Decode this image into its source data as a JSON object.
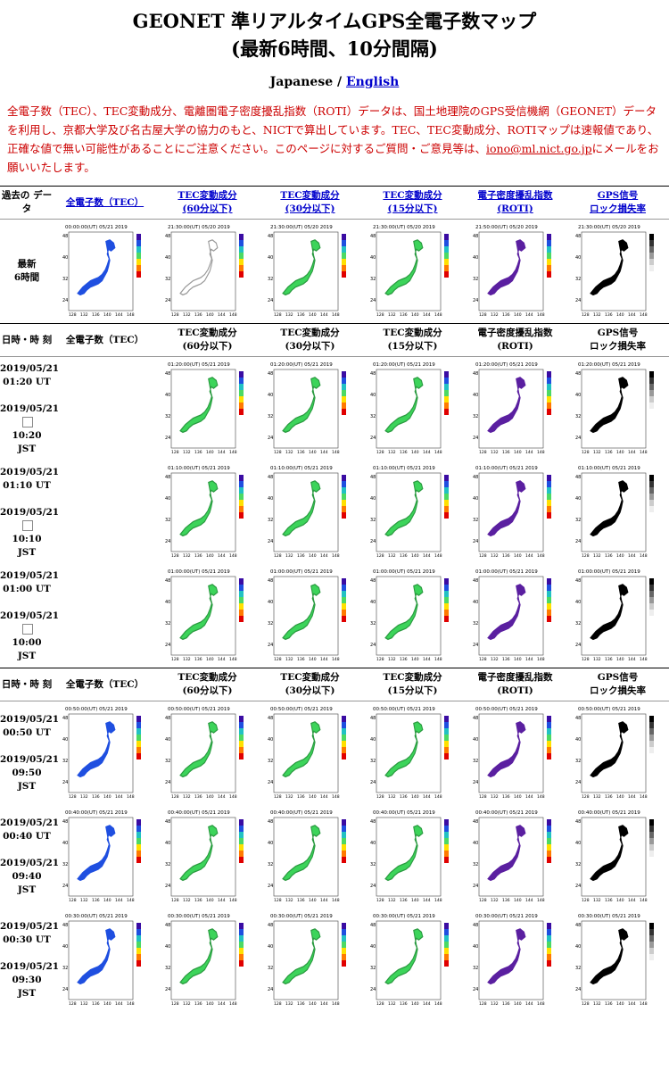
{
  "title_line1": "GEONET 準リアルタイムGPS全電子数マップ",
  "title_line2": "(最新6時間、10分間隔)",
  "lang": {
    "japanese": "Japanese",
    "sep": " / ",
    "english": "English"
  },
  "notice": {
    "text1": "全電子数（TEC）、TEC変動成分、電離圏電子密度擾乱指数（ROTI）データは、国土地理院のGPS受信機網（GEONET）データを利用し、京都大学及び名古屋大学の協力のもと、NICTで算出しています。TEC、TEC変動成分、ROTIマップは速報値であり、正確な値で無い可能性があることにご注意ください。このページに対するご質問・ご意見等は、",
    "email": "iono@ml.nict.go.jp",
    "text2": "にメールをお願いいたします。"
  },
  "header_links": {
    "past": "過去の データ",
    "tec": "全電子数（TEC）",
    "tec60": [
      "TEC変動成分",
      "(60分以下)"
    ],
    "tec30": [
      "TEC変動成分",
      "(30分以下)"
    ],
    "tec15": [
      "TEC変動成分",
      "(15分以下)"
    ],
    "roti": [
      "電子密度擾乱指数",
      "(ROTI)"
    ],
    "gps": [
      "GPS信号",
      "ロック損失率"
    ]
  },
  "latest_label": [
    "最新",
    "6時間"
  ],
  "latest_times": [
    "00:00:00(UT) 05/21 2019",
    "21:30:00(UT) 05/20 2019",
    "21:30:00(UT) 05/20 2019",
    "21:30:00(UT) 05/20 2019",
    "21:50:00(UT) 05/20 2019",
    "21:30:00(UT) 05/20 2019"
  ],
  "section_header": {
    "datetime": "日時・時 刻",
    "tec": "全電子数（TEC）",
    "tec60": [
      "TEC変動成分",
      "(60分以下)"
    ],
    "tec30": [
      "TEC変動成分",
      "(30分以下)"
    ],
    "tec15": [
      "TEC変動成分",
      "(15分以下)"
    ],
    "roti": [
      "電子密度擾乱指数",
      "(ROTI)"
    ],
    "gps": [
      "GPS信号",
      "ロック損失率"
    ]
  },
  "rows_a": [
    {
      "ut_date": "2019/05/21",
      "ut_time": "01:20 UT",
      "jst_date": "2019/05/21",
      "jst_time": "10:20",
      "jst": "JST",
      "stamp": "01:20:00(UT) 05/21 2019"
    },
    {
      "ut_date": "2019/05/21",
      "ut_time": "01:10 UT",
      "jst_date": "2019/05/21",
      "jst_time": "10:10",
      "jst": "JST",
      "stamp": "01:10:00(UT) 05/21 2019"
    },
    {
      "ut_date": "2019/05/21",
      "ut_time": "01:00 UT",
      "jst_date": "2019/05/21",
      "jst_time": "10:00",
      "jst": "JST",
      "stamp": "01:00:00(UT) 05/21 2019"
    }
  ],
  "rows_b": [
    {
      "ut_date": "2019/05/21",
      "ut_time": "00:50 UT",
      "jst_date": "2019/05/21",
      "jst_time": "09:50",
      "jst": "JST",
      "stamp": "00:50:00(UT) 05/21 2019"
    },
    {
      "ut_date": "2019/05/21",
      "ut_time": "00:40 UT",
      "jst_date": "2019/05/21",
      "jst_time": "09:40",
      "jst": "JST",
      "stamp": "00:40:00(UT) 05/21 2019"
    },
    {
      "ut_date": "2019/05/21",
      "ut_time": "00:30 UT",
      "jst_date": "2019/05/21",
      "jst_time": "09:30",
      "jst": "JST",
      "stamp": "00:30:00(UT) 05/21 2019"
    }
  ],
  "map_colors": {
    "tec": "#1f4fe0",
    "tec_var": "#3cd45a",
    "roti": "#5a1fa0",
    "gps": "#000000"
  },
  "axis_ticks": {
    "lat": [
      "48",
      "40",
      "32",
      "24"
    ],
    "lon": [
      "128",
      "132",
      "136",
      "140",
      "144",
      "148"
    ]
  }
}
